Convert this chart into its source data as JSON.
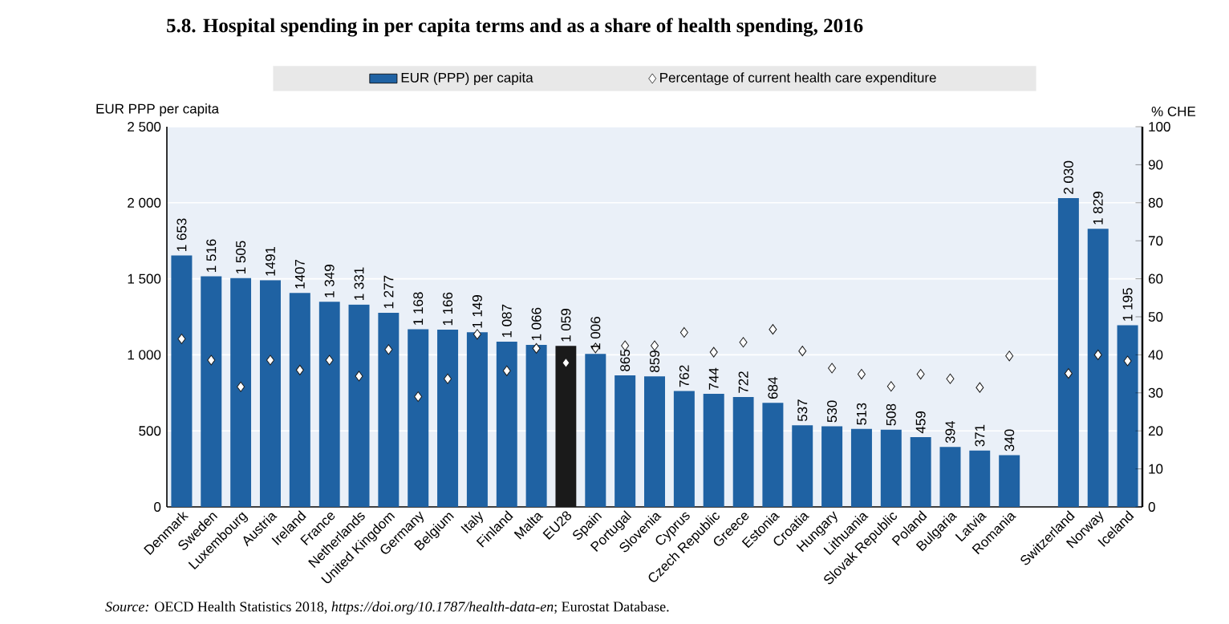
{
  "chart_data": {
    "type": "bar",
    "title": "5.8. Hospital spending in per capita terms and as a share of health spending, 2016",
    "ylabel": "EUR PPP per capita",
    "y2label": "% CHE",
    "categories": [
      "Denmark",
      "Sweden",
      "Luxembourg",
      "Austria",
      "Ireland",
      "France",
      "Netherlands",
      "United Kingdom",
      "Germany",
      "Belgium",
      "Italy",
      "Finland",
      "Malta",
      "EU28",
      "Spain",
      "Portugal",
      "Slovenia",
      "Cyprus",
      "Czech Republic",
      "Greece",
      "Estonia",
      "Croatia",
      "Hungary",
      "Lithuania",
      "Slovak Republic",
      "Poland",
      "Bulgaria",
      "Latvia",
      "Romania",
      null,
      "Switzerland",
      "Norway",
      "Iceland"
    ],
    "series": [
      {
        "name": "EUR (PPP) per capita",
        "color": "#1f62a3",
        "colors": [
          "#1f62a3",
          "#1f62a3",
          "#1f62a3",
          "#1f62a3",
          "#1f62a3",
          "#1f62a3",
          "#1f62a3",
          "#1f62a3",
          "#1f62a3",
          "#1f62a3",
          "#1f62a3",
          "#1f62a3",
          "#1f62a3",
          "#1a1a1a",
          "#1f62a3",
          "#1f62a3",
          "#1f62a3",
          "#1f62a3",
          "#1f62a3",
          "#1f62a3",
          "#1f62a3",
          "#1f62a3",
          "#1f62a3",
          "#1f62a3",
          "#1f62a3",
          "#1f62a3",
          "#1f62a3",
          "#1f62a3",
          "#1f62a3",
          "#1f62a3",
          "#1f62a3",
          "#1f62a3",
          "#1f62a3"
        ],
        "values": [
          1653,
          1516,
          1505,
          1491,
          1407,
          1349,
          1331,
          1277,
          1168,
          1166,
          1149,
          1087,
          1066,
          1059,
          1006,
          865,
          859,
          762,
          744,
          722,
          684,
          537,
          530,
          513,
          508,
          459,
          394,
          371,
          340,
          null,
          2030,
          1829,
          1195
        ],
        "value_labels": [
          "1 653",
          "1 516",
          "1 505",
          "1491",
          "1407",
          "1 349",
          "1 331",
          "1 277",
          "1 168",
          "1 166",
          "1 149",
          "1 087",
          "1 066",
          "1 059",
          "1 006",
          "865",
          "859",
          "762",
          "744",
          "722",
          "684",
          "537",
          "530",
          "513",
          "508",
          "459",
          "394",
          "371",
          "340",
          null,
          "2 030",
          "1 829",
          "1 195"
        ]
      },
      {
        "name": "Percentage of current health care expenditure",
        "type": "scatter",
        "axis": "y2",
        "color": "#1a1a1a",
        "marker": "diamond",
        "values": [
          44.2,
          38.6,
          31.6,
          38.6,
          36.0,
          38.6,
          34.4,
          41.4,
          29.0,
          33.7,
          45.4,
          35.8,
          41.7,
          37.9,
          41.8,
          42.4,
          42.4,
          45.9,
          40.7,
          43.3,
          46.7,
          41.0,
          36.5,
          34.9,
          31.7,
          34.9,
          33.7,
          31.4,
          39.7,
          null,
          35.1,
          40.0,
          38.4
        ]
      }
    ],
    "ylim": [
      0,
      2500
    ],
    "yticks": [
      0,
      500,
      {
        "value": 1000,
        "label": "1 000"
      },
      {
        "value": 1500,
        "label": "1 500"
      },
      {
        "value": 2000,
        "label": "2 000"
      },
      {
        "value": 2500,
        "label": "2 500"
      }
    ],
    "y2lim": [
      0,
      100
    ],
    "y2ticks": [
      0,
      10,
      20,
      30,
      40,
      50,
      60,
      70,
      80,
      90,
      100
    ],
    "grid": "y",
    "legend": "top",
    "annotations": [
      "*Source:*  OECD Health Statistics 2018, *https://doi.org/10.1787/health-data-en*; Eurostat Database."
    ]
  }
}
